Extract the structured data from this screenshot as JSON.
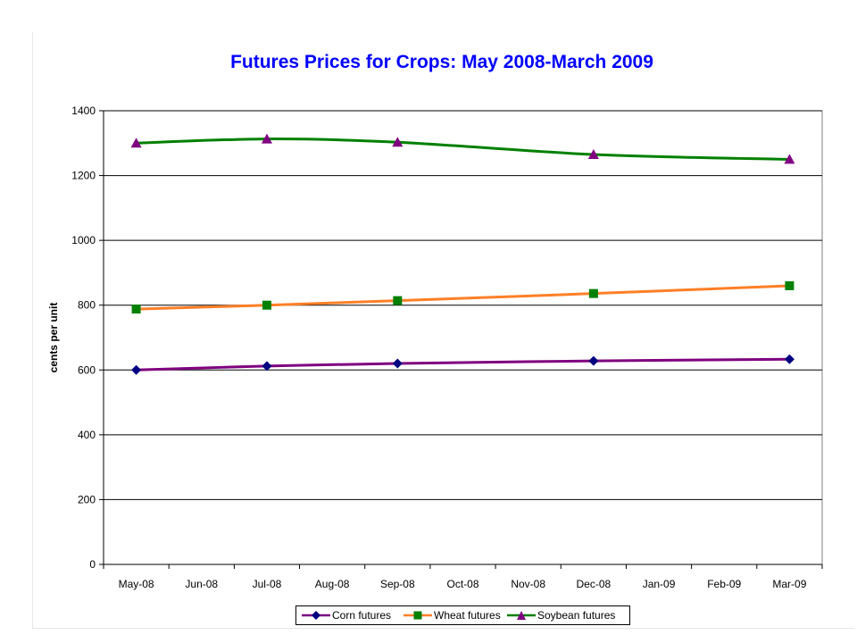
{
  "chart_data": {
    "type": "line",
    "title": "Futures Prices for Crops: May 2008-March 2009",
    "ylabel": "cents per unit",
    "xlabel": "",
    "categories": [
      "May-08",
      "Jun-08",
      "Jul-08",
      "Aug-08",
      "Sep-08",
      "Oct-08",
      "Nov-08",
      "Dec-08",
      "Jan-09",
      "Feb-09",
      "Mar-09"
    ],
    "ylim": [
      0,
      1400
    ],
    "yticks": [
      "0",
      "200",
      "400",
      "600",
      "800",
      "1000",
      "1200",
      "1400"
    ],
    "grid": true,
    "legend_position": "bottom",
    "series": [
      {
        "name": "Corn futures",
        "color": "#7f007f",
        "marker": "diamond",
        "marker_color": "#000080",
        "points": [
          [
            "May-08",
            600
          ],
          [
            "Jul-08",
            612
          ],
          [
            "Sep-08",
            620
          ],
          [
            "Dec-08",
            628
          ],
          [
            "Mar-09",
            633
          ]
        ]
      },
      {
        "name": "Wheat futures",
        "color": "#ff7f27",
        "marker": "square",
        "marker_color": "#008000",
        "points": [
          [
            "May-08",
            788
          ],
          [
            "Jul-08",
            800
          ],
          [
            "Sep-08",
            814
          ],
          [
            "Dec-08",
            836
          ],
          [
            "Mar-09",
            860
          ]
        ]
      },
      {
        "name": "Soybean futures",
        "color": "#008000",
        "marker": "triangle",
        "marker_color": "#800080",
        "points": [
          [
            "May-08",
            1300
          ],
          [
            "Jul-08",
            1313
          ],
          [
            "Sep-08",
            1303
          ],
          [
            "Dec-08",
            1265
          ],
          [
            "Mar-09",
            1250
          ]
        ]
      }
    ]
  }
}
